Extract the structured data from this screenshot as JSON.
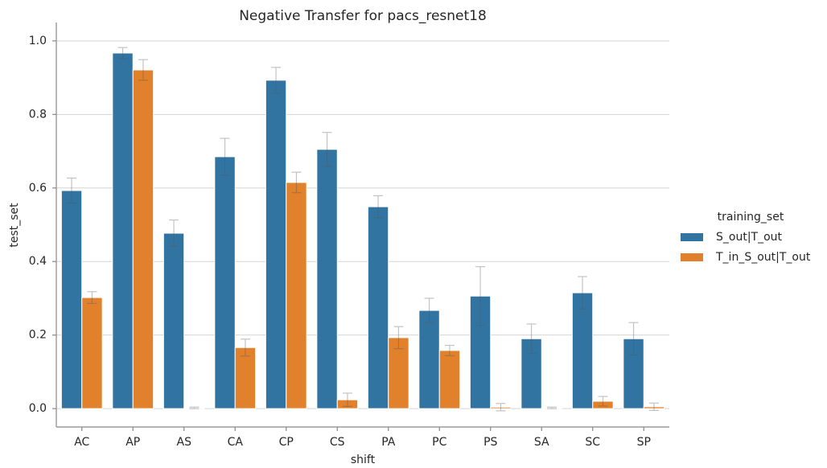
{
  "chart_data": {
    "type": "bar",
    "title": "Negative Transfer for pacs_resnet18",
    "x_label": "shift",
    "y_label": "test_set",
    "legend_title": "training_set",
    "legend": "right",
    "categories": [
      "AC",
      "AP",
      "AS",
      "CA",
      "CP",
      "CS",
      "PA",
      "PC",
      "PS",
      "SA",
      "SC",
      "SP"
    ],
    "series": [
      {
        "name": "S_out|T_out",
        "color": "#3274a1",
        "values": [
          0.593,
          0.967,
          0.477,
          0.685,
          0.893,
          0.705,
          0.549,
          0.267,
          0.306,
          0.19,
          0.315,
          0.19
        ],
        "errors": [
          0.034,
          0.015,
          0.036,
          0.05,
          0.035,
          0.046,
          0.03,
          0.033,
          0.08,
          0.04,
          0.044,
          0.044
        ]
      },
      {
        "name": "T_in_S_out|T_out",
        "color": "#e1812c",
        "values": [
          0.302,
          0.921,
          0.002,
          0.166,
          0.615,
          0.024,
          0.193,
          0.158,
          0.004,
          0.002,
          0.02,
          0.005
        ],
        "errors": [
          0.016,
          0.028,
          0.002,
          0.023,
          0.028,
          0.018,
          0.03,
          0.014,
          0.01,
          0.002,
          0.013,
          0.01
        ]
      }
    ],
    "ylim": [
      -0.05,
      1.05
    ],
    "yticks": [
      0.0,
      0.2,
      0.4,
      0.6,
      0.8,
      1.0
    ],
    "grid": true
  }
}
